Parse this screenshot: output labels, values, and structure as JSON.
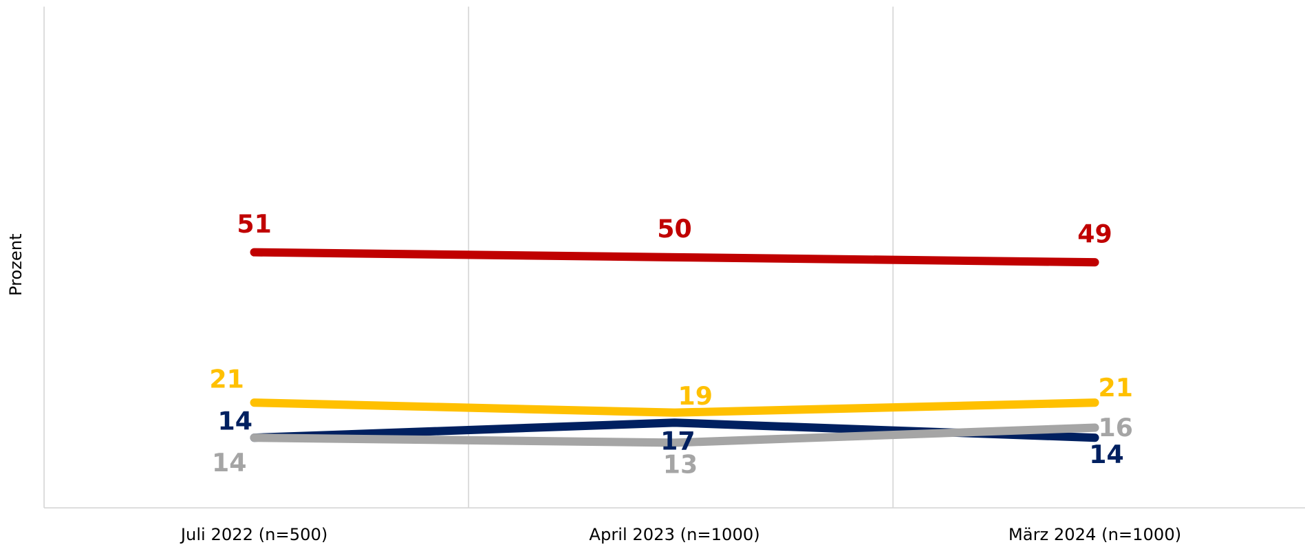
{
  "chart_data": {
    "type": "line",
    "y_label": "Prozent",
    "categories": [
      "Juli 2022 (n=500)",
      "April 2023 (n=1000)",
      "März 2024 (n=1000)"
    ],
    "ylim": [
      0,
      100
    ],
    "series": [
      {
        "color": "#c00000",
        "values": [
          51,
          50,
          49
        ]
      },
      {
        "color": "#ffc000",
        "values": [
          21,
          19,
          21
        ]
      },
      {
        "color": "#002060",
        "values": [
          14,
          17,
          14
        ]
      },
      {
        "color": "#a5a5a5",
        "values": [
          14,
          13,
          16
        ]
      }
    ]
  }
}
